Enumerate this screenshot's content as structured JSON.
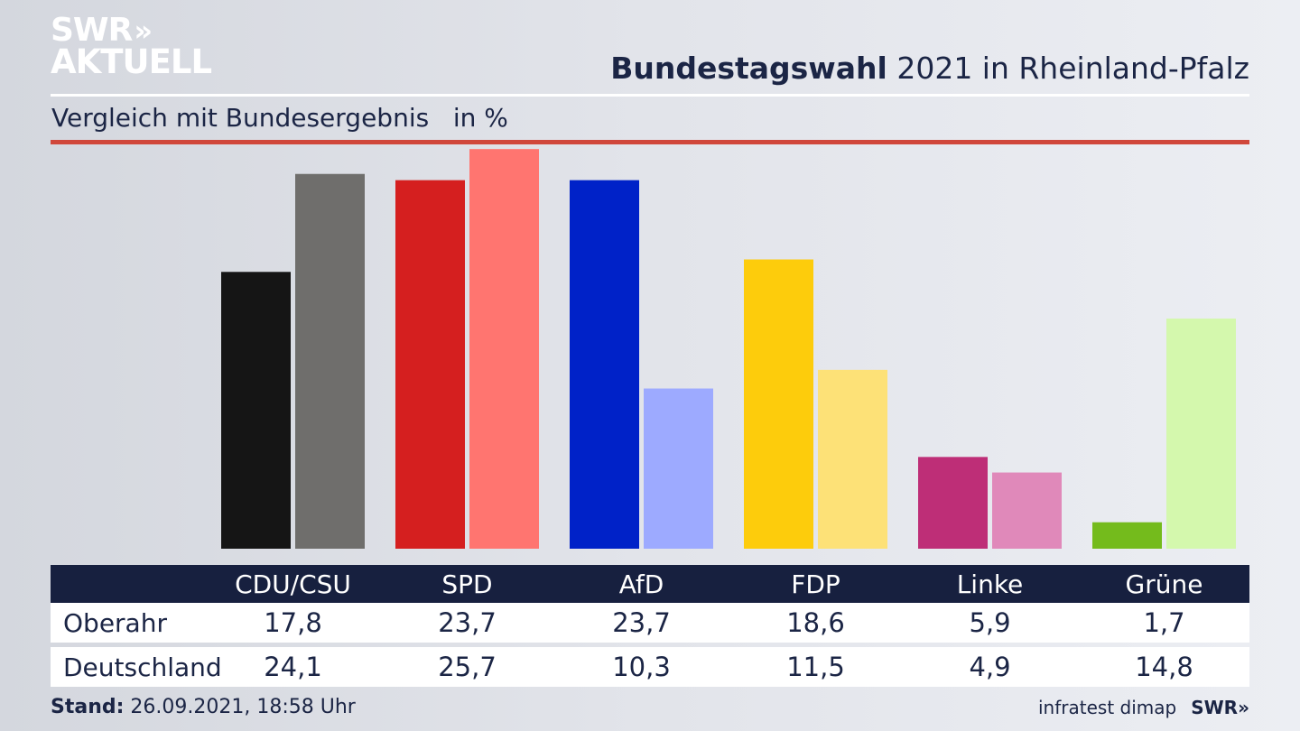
{
  "brand": {
    "line1": "SWR",
    "chevrons": "»",
    "line2": "AKTUELL"
  },
  "header": {
    "title_bold": "Bundestagswahl",
    "title_rest": " 2021 in Rheinland-Pfalz"
  },
  "subtitle": "Vergleich mit Bundesergebnis   in %",
  "footer": {
    "stand_label": "Stand:",
    "stand_value": " 26.09.2021, 18:58 Uhr",
    "source": "infratest dimap",
    "logo": "SWR»"
  },
  "colors": {
    "header_bg": "#17203f",
    "accent_rule": "#d0473b",
    "text": "#1b2545"
  },
  "chart_data": {
    "type": "bar",
    "title": "Bundestagswahl 2021 in Rheinland-Pfalz",
    "subtitle": "Vergleich mit Bundesergebnis   in %",
    "categories": [
      "CDU/CSU",
      "SPD",
      "AfD",
      "FDP",
      "Linke",
      "Grüne"
    ],
    "series": [
      {
        "name": "Oberahr",
        "values": [
          17.8,
          23.7,
          23.7,
          18.6,
          5.9,
          1.7
        ],
        "display": [
          "17,8",
          "23,7",
          "23,7",
          "18,6",
          "5,9",
          "1,7"
        ]
      },
      {
        "name": "Deutschland",
        "values": [
          24.1,
          25.7,
          10.3,
          11.5,
          4.9,
          14.8
        ],
        "display": [
          "24,1",
          "25,7",
          "10,3",
          "11,5",
          "4,9",
          "14,8"
        ]
      }
    ],
    "party_colors": [
      [
        "#151515",
        "#6f6e6c"
      ],
      [
        "#d51f1f",
        "#ff7570"
      ],
      [
        "#0022c8",
        "#9daaff"
      ],
      [
        "#fdcc0c",
        "#fde177"
      ],
      [
        "#be2e77",
        "#e089ba"
      ],
      [
        "#74bb1c",
        "#d4f8ad"
      ]
    ],
    "ylim": [
      0,
      26
    ],
    "grid": false,
    "legend": "table-below"
  }
}
